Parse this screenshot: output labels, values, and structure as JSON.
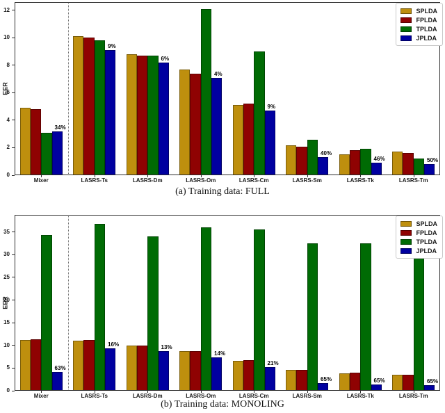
{
  "figure": {
    "ylabel": "EER",
    "series_names": [
      "SPLDA",
      "FPLDA",
      "TPLDA",
      "JPLDA"
    ],
    "series_colors": [
      "#BE8F0E",
      "#8F0202",
      "#006B04",
      "#0000A0"
    ]
  },
  "chart_data": [
    {
      "type": "bar",
      "caption": "(a) Training data: FULL",
      "ylabel": "EER",
      "categories": [
        "Mixer",
        "LASRS-Ts",
        "LASRS-Dm",
        "LASRS-Om",
        "LASRS-Cm",
        "LASRS-Sm",
        "LASRS-Tk",
        "LASRS-Tm"
      ],
      "series": [
        {
          "name": "SPLDA",
          "color": "#BE8F0E",
          "values": [
            4.9,
            10.1,
            8.8,
            7.7,
            5.1,
            2.2,
            1.5,
            1.7
          ]
        },
        {
          "name": "FPLDA",
          "color": "#8F0202",
          "values": [
            4.8,
            10.0,
            8.7,
            7.4,
            5.2,
            2.1,
            1.8,
            1.6
          ]
        },
        {
          "name": "TPLDA",
          "color": "#006B04",
          "values": [
            3.1,
            9.8,
            8.7,
            12.1,
            9.0,
            2.6,
            1.9,
            1.2
          ]
        },
        {
          "name": "JPLDA",
          "color": "#0000A0",
          "values": [
            3.2,
            9.1,
            8.2,
            7.1,
            4.7,
            1.3,
            0.9,
            0.8
          ]
        }
      ],
      "annotations": [
        "34%",
        "9%",
        "6%",
        "4%",
        "9%",
        "40%",
        "46%",
        "50%"
      ],
      "annotation_series": "JPLDA",
      "ylim": [
        0,
        12.6
      ],
      "yticks": [
        0,
        2,
        4,
        6,
        8,
        10,
        12
      ],
      "grid": false,
      "legend_position": "upper right",
      "separator_after_category": "Mixer"
    },
    {
      "type": "bar",
      "caption": "(b) Training data: MONOLING",
      "ylabel": "EER",
      "categories": [
        "Mixer",
        "LASRS-Ts",
        "LASRS-Dm",
        "LASRS-Om",
        "LASRS-Cm",
        "LASRS-Sm",
        "LASRS-Tk",
        "LASRS-Tm"
      ],
      "series": [
        {
          "name": "SPLDA",
          "color": "#BE8F0E",
          "values": [
            11.2,
            11.0,
            10.0,
            8.7,
            6.6,
            4.6,
            3.9,
            3.5
          ]
        },
        {
          "name": "FPLDA",
          "color": "#8F0202",
          "values": [
            11.3,
            11.2,
            10.0,
            8.7,
            6.7,
            4.6,
            4.0,
            3.6
          ]
        },
        {
          "name": "TPLDA",
          "color": "#006B04",
          "values": [
            34.4,
            36.8,
            34.0,
            36.0,
            35.6,
            32.5,
            32.5,
            31.6
          ]
        },
        {
          "name": "JPLDA",
          "color": "#0000A0",
          "values": [
            4.2,
            9.4,
            8.7,
            7.4,
            5.2,
            1.7,
            1.4,
            1.3
          ]
        }
      ],
      "annotations": [
        "63%",
        "16%",
        "13%",
        "14%",
        "21%",
        "65%",
        "65%",
        "65%"
      ],
      "annotation_series": "JPLDA",
      "ylim": [
        0,
        38.8
      ],
      "yticks": [
        0,
        5,
        10,
        15,
        20,
        25,
        30,
        35
      ],
      "grid": false,
      "legend_position": "upper right",
      "separator_after_category": "Mixer"
    }
  ]
}
